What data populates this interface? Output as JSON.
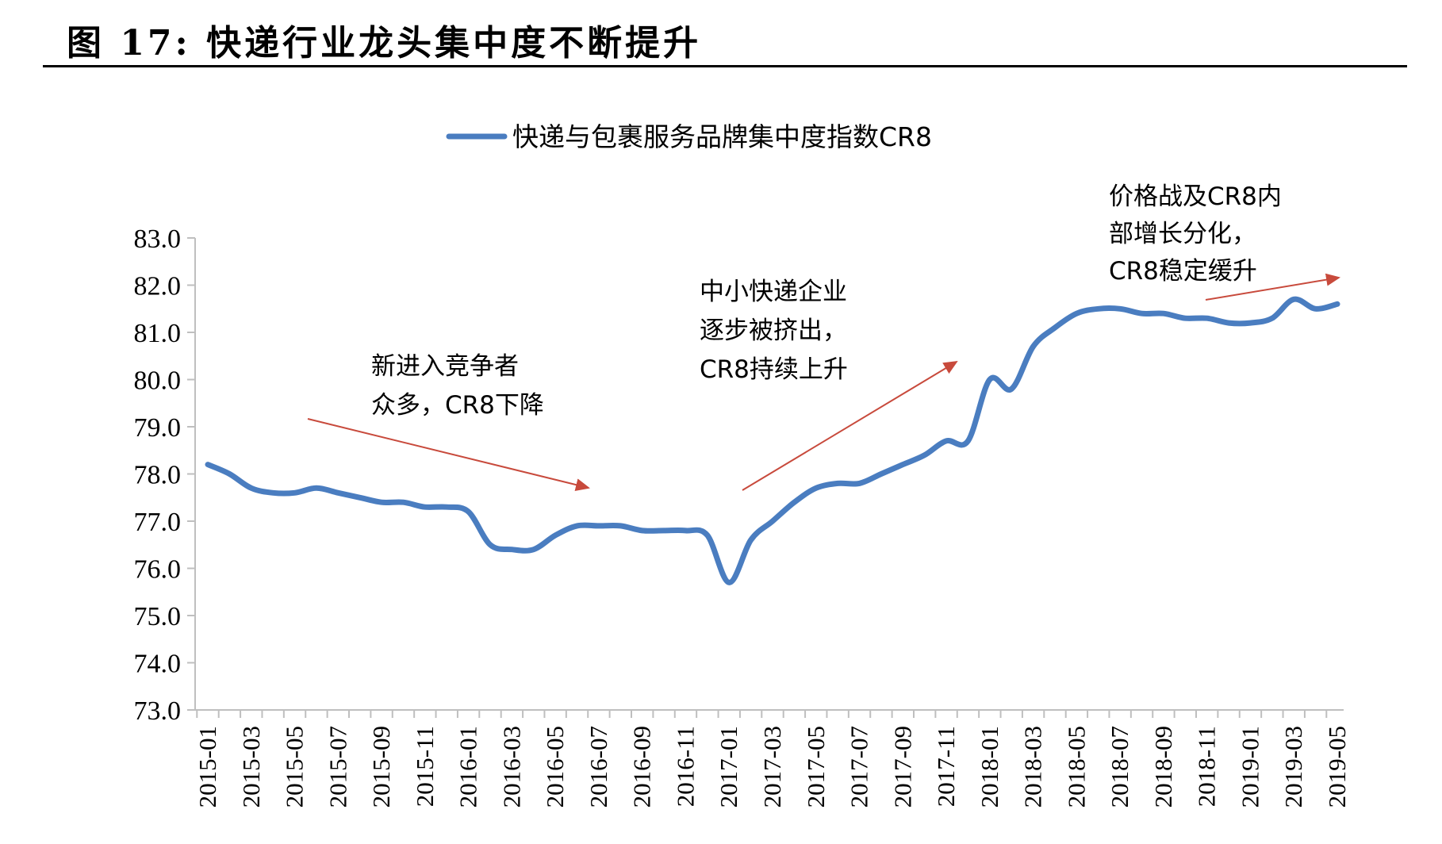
{
  "figure": {
    "title": "图 17: 快递行业龙头集中度不断提升"
  },
  "colors": {
    "series": "#4a7dc0",
    "arrow": "#c84a3c",
    "axis": "#bfbfbf"
  },
  "chart_data": {
    "type": "line",
    "title": "",
    "xlabel": "",
    "ylabel": "",
    "ylim": [
      73.0,
      83.0
    ],
    "yticks": [
      "83.0",
      "82.0",
      "81.0",
      "80.0",
      "79.0",
      "78.0",
      "77.0",
      "76.0",
      "75.0",
      "74.0",
      "73.0"
    ],
    "xticks": [
      "2015-01",
      "2015-03",
      "2015-05",
      "2015-07",
      "2015-09",
      "2015-11",
      "2016-01",
      "2016-03",
      "2016-05",
      "2016-07",
      "2016-09",
      "2016-11",
      "2017-01",
      "2017-03",
      "2017-05",
      "2017-07",
      "2017-09",
      "2017-11",
      "2018-01",
      "2018-03",
      "2018-05",
      "2018-07",
      "2018-09",
      "2018-11",
      "2019-01",
      "2019-03",
      "2019-05"
    ],
    "legend_position": "top-center",
    "grid": false,
    "x": [
      "2015-01",
      "2015-02",
      "2015-03",
      "2015-04",
      "2015-05",
      "2015-06",
      "2015-07",
      "2015-08",
      "2015-09",
      "2015-10",
      "2015-11",
      "2015-12",
      "2016-01",
      "2016-02",
      "2016-03",
      "2016-04",
      "2016-05",
      "2016-06",
      "2016-07",
      "2016-08",
      "2016-09",
      "2016-10",
      "2016-11",
      "2016-12",
      "2017-01",
      "2017-02",
      "2017-03",
      "2017-04",
      "2017-05",
      "2017-06",
      "2017-07",
      "2017-08",
      "2017-09",
      "2017-10",
      "2017-11",
      "2017-12",
      "2018-01",
      "2018-02",
      "2018-03",
      "2018-04",
      "2018-05",
      "2018-06",
      "2018-07",
      "2018-08",
      "2018-09",
      "2018-10",
      "2018-11",
      "2018-12",
      "2019-01",
      "2019-02",
      "2019-03",
      "2019-04",
      "2019-05"
    ],
    "series": [
      {
        "name": "快递与包裹服务品牌集中度指数CR8",
        "values": [
          78.2,
          78.0,
          77.7,
          77.6,
          77.6,
          77.7,
          77.6,
          77.5,
          77.4,
          77.4,
          77.3,
          77.3,
          77.2,
          76.5,
          76.4,
          76.4,
          76.7,
          76.9,
          76.9,
          76.9,
          76.8,
          76.8,
          76.8,
          76.7,
          75.7,
          76.6,
          77.0,
          77.4,
          77.7,
          77.8,
          77.8,
          78.0,
          78.2,
          78.4,
          78.7,
          78.7,
          80.0,
          79.8,
          80.7,
          81.1,
          81.4,
          81.5,
          81.5,
          81.4,
          81.4,
          81.3,
          81.3,
          81.2,
          81.2,
          81.3,
          81.7,
          81.5,
          81.6
        ]
      }
    ],
    "annotations": [
      {
        "lines": [
          "新进入竞争者",
          "众多，CR8下降"
        ]
      },
      {
        "lines": [
          "中小快递企业",
          "逐步被挤出，",
          "CR8持续上升"
        ]
      },
      {
        "lines": [
          "价格战及CR8内",
          "部增长分化，",
          "CR8稳定缓升"
        ]
      }
    ]
  }
}
